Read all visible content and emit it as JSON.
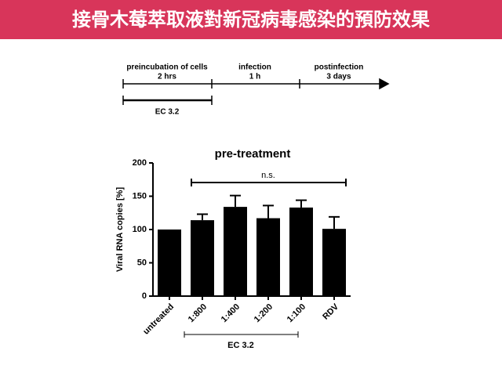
{
  "header": {
    "title": "接骨木莓萃取液對新冠病毒感染的預防效果"
  },
  "timeline": {
    "phases": [
      {
        "name": "preincubation of cells",
        "duration": "2 hrs"
      },
      {
        "name": "infection",
        "duration": "1 h"
      },
      {
        "name": "postinfection",
        "duration": "3 days"
      }
    ],
    "treatment": "EC 3.2"
  },
  "chart_data": {
    "type": "bar",
    "title": "pre-treatment",
    "y_label": "Viral RNA copies [%]",
    "categories": [
      "untreated",
      "1:800",
      "1:400",
      "1:200",
      "1:100",
      "RDV"
    ],
    "values": [
      100,
      114,
      134,
      117,
      133,
      101
    ],
    "errors": [
      null,
      9,
      17,
      19,
      11,
      18
    ],
    "color": "#000000",
    "ylim": [
      0,
      200
    ],
    "yticks": [
      0,
      50,
      100,
      150,
      200
    ],
    "significance": "n.s.",
    "group_label": "EC 3.2"
  }
}
